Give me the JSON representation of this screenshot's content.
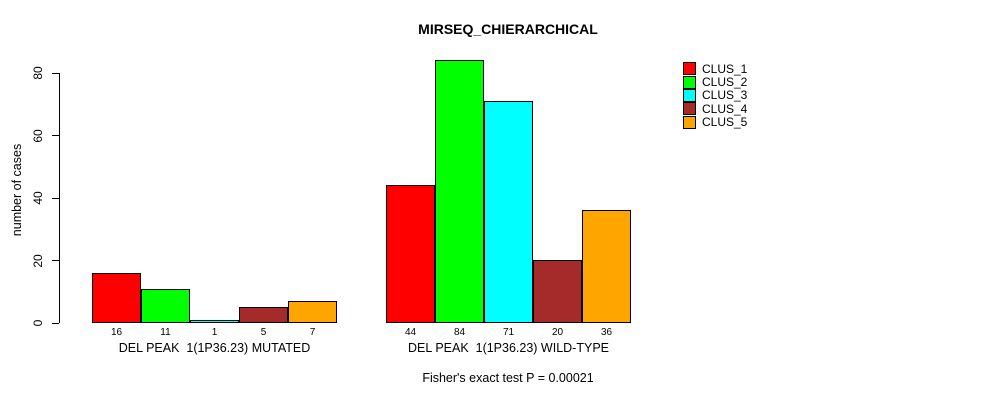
{
  "chart_data": {
    "type": "bar",
    "title": "MIRSEQ_CHIERARCHICAL",
    "ylabel": "number of cases",
    "ylim": [
      0,
      80
    ],
    "yticks": [
      0,
      20,
      40,
      60,
      80
    ],
    "grid": false,
    "legend_position": "top-right",
    "bar_value_labels": true,
    "categories": [
      "DEL PEAK  1(1P36.23) MUTATED",
      "DEL PEAK  1(1P36.23) WILD-TYPE"
    ],
    "series": [
      {
        "name": "CLUS_1",
        "color": "#FF0000",
        "values": [
          16,
          44
        ]
      },
      {
        "name": "CLUS_2",
        "color": "#00FF00",
        "values": [
          11,
          84
        ]
      },
      {
        "name": "CLUS_3",
        "color": "#00FFFF",
        "values": [
          1,
          71
        ]
      },
      {
        "name": "CLUS_4",
        "color": "#A52A2A",
        "values": [
          5,
          20
        ]
      },
      {
        "name": "CLUS_5",
        "color": "#FFA500",
        "values": [
          7,
          36
        ]
      }
    ],
    "annotation": "Fisher's exact test P = 0.00021"
  }
}
